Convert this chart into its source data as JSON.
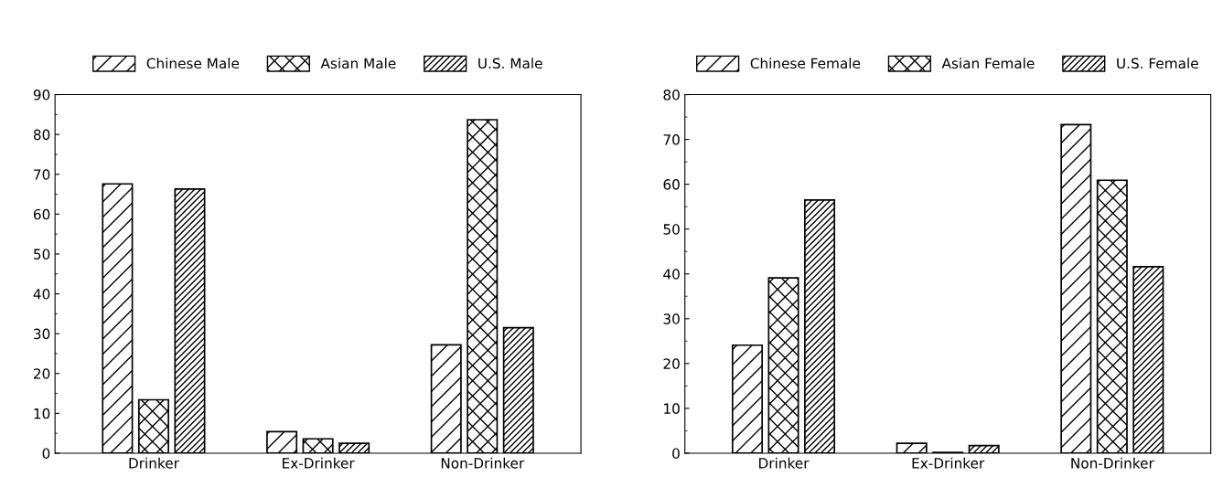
{
  "chart_data": [
    {
      "type": "bar",
      "categories": [
        "Drinker",
        "Ex-Drinker",
        "Non-Drinker"
      ],
      "ylim": [
        0,
        90
      ],
      "yticks": [
        0,
        10,
        20,
        30,
        40,
        50,
        60,
        70,
        80,
        90
      ],
      "grid": false,
      "legend": "top",
      "series": [
        {
          "name": "Chinese Male",
          "color": "#000000",
          "values": [
            67.6,
            5.4,
            27.2
          ]
        },
        {
          "name": "Asian Male",
          "color": "#000000",
          "values": [
            13.4,
            3.6,
            83.7
          ]
        },
        {
          "name": "U.S. Male",
          "color": "#000000",
          "values": [
            66.3,
            2.5,
            31.5
          ]
        }
      ]
    },
    {
      "type": "bar",
      "categories": [
        "Drinker",
        "Ex-Drinker",
        "Non-Drinker"
      ],
      "ylim": [
        0,
        80
      ],
      "yticks": [
        0,
        10,
        20,
        30,
        40,
        50,
        60,
        70,
        80
      ],
      "grid": false,
      "legend": "top",
      "series": [
        {
          "name": "Chinese Female",
          "color": "#000000",
          "values": [
            24.1,
            2.2,
            73.3
          ]
        },
        {
          "name": "Asian Female",
          "color": "#000000",
          "values": [
            39.1,
            0.2,
            60.9
          ]
        },
        {
          "name": "U.S. Female",
          "color": "#000000",
          "values": [
            56.5,
            1.7,
            41.6
          ]
        }
      ]
    }
  ]
}
